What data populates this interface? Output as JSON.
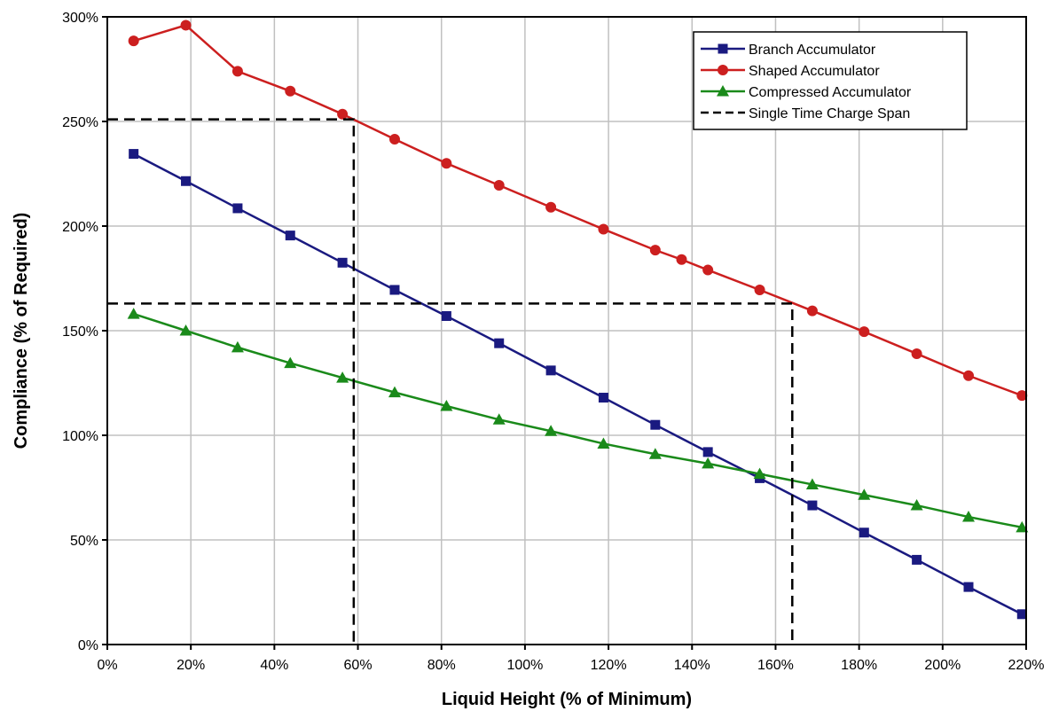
{
  "chart_data": {
    "type": "line",
    "xlabel": "Liquid Height (% of Minimum)",
    "ylabel": "Compliance (% of Required)",
    "xlim": [
      0,
      220
    ],
    "ylim": [
      0,
      300
    ],
    "x_ticks": [
      0,
      20,
      40,
      60,
      80,
      100,
      120,
      140,
      160,
      180,
      200,
      220
    ],
    "x_tick_labels": [
      "0%",
      "20%",
      "40%",
      "60%",
      "80%",
      "100%",
      "120%",
      "140%",
      "160%",
      "180%",
      "200%",
      "220%"
    ],
    "y_ticks": [
      0,
      50,
      100,
      150,
      200,
      250,
      300
    ],
    "y_tick_labels": [
      "0%",
      "50%",
      "100%",
      "150%",
      "200%",
      "250%",
      "300%"
    ],
    "grid": true,
    "legend_position": "top-right",
    "series": [
      {
        "name": "Branch Accumulator",
        "color": "#1a1a80",
        "marker": "square",
        "x": [
          6.3,
          18.8,
          31.2,
          43.8,
          56.3,
          68.8,
          81.2,
          93.8,
          106.2,
          118.8,
          131.2,
          143.8,
          156.2,
          168.8,
          181.2,
          193.8,
          206.2,
          219.0
        ],
        "y": [
          234.5,
          221.5,
          208.5,
          195.5,
          182.5,
          169.5,
          157,
          144,
          131,
          118,
          105,
          92,
          79.5,
          66.5,
          53.5,
          40.5,
          27.5,
          14.5
        ]
      },
      {
        "name": "Shaped Accumulator",
        "color": "#cc1f1f",
        "marker": "circle",
        "x": [
          6.3,
          18.8,
          31.2,
          43.8,
          56.3,
          68.8,
          81.2,
          93.8,
          106.2,
          118.8,
          131.2,
          137.5,
          143.8,
          156.2,
          168.8,
          181.2,
          193.8,
          206.2,
          219.0
        ],
        "y": [
          288.5,
          296,
          274,
          264.5,
          253.5,
          241.5,
          230,
          219.5,
          209,
          198.5,
          188.5,
          184,
          179,
          169.5,
          159.5,
          149.5,
          139,
          128.5,
          119
        ]
      },
      {
        "name": "Compressed Accumulator",
        "color": "#1a8a1a",
        "marker": "triangle",
        "x": [
          6.3,
          18.8,
          31.2,
          43.8,
          56.3,
          68.8,
          81.2,
          93.8,
          106.2,
          118.8,
          131.2,
          143.8,
          156.2,
          168.8,
          181.2,
          193.8,
          206.2,
          219.0
        ],
        "y": [
          158,
          150,
          142,
          134.5,
          127.5,
          120.5,
          114,
          107.5,
          102,
          96,
          91,
          86.5,
          81.5,
          76.5,
          71.5,
          66.5,
          61,
          56
        ]
      },
      {
        "name": "Single Time Charge Span",
        "color": "#000000",
        "marker": "none",
        "dashed": true,
        "x": [
          0,
          59,
          59
        ],
        "y": [
          251,
          251,
          0
        ]
      },
      {
        "name": "",
        "color": "#000000",
        "marker": "none",
        "dashed": true,
        "x": [
          0,
          164,
          164
        ],
        "y": [
          163,
          163,
          0
        ]
      }
    ]
  }
}
